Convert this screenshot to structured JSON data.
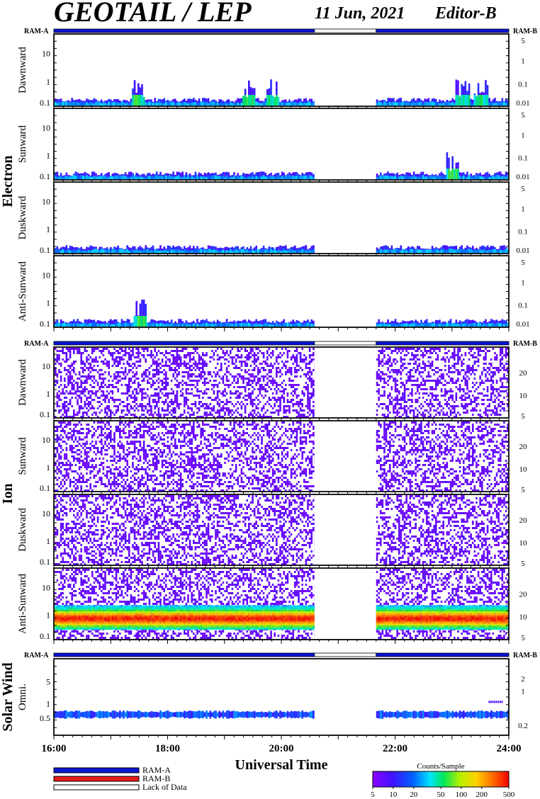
{
  "header": {
    "title": "GEOTAIL / LEP",
    "date": "11 Jun, 2021",
    "editor": "Editor-B"
  },
  "colors": {
    "ram_a": "#0a14d2",
    "ram_b": "#e81c1c",
    "lack_of_data": "#ffffff",
    "frame": "#000000"
  },
  "ram_labels": {
    "left": "RAM-A",
    "right": "RAM-B"
  },
  "groups": {
    "electron": "Electron",
    "ion": "Ion",
    "solar_wind": "Solar Wind"
  },
  "chart_data": {
    "type": "heatmap",
    "x_range": [
      "16:00",
      "24:00"
    ],
    "x_ticks": [
      "16:00",
      "18:00",
      "20:00",
      "22:00",
      "24:00"
    ],
    "xlabel": "Universal Time",
    "data_gap": [
      "20:35",
      "21:40"
    ],
    "status_bar": [
      {
        "mode": "RAM-A",
        "from": "16:00",
        "to": "20:35"
      },
      {
        "mode": "Lack of Data",
        "from": "20:35",
        "to": "21:40"
      },
      {
        "mode": "RAM-A",
        "from": "21:40",
        "to": "24:00"
      }
    ],
    "colorbar": {
      "title": "Counts/Sample",
      "scale": "log",
      "range": [
        5,
        500
      ],
      "ticks": [
        "5",
        "10",
        "20",
        "50",
        "100",
        "200",
        "500"
      ]
    },
    "legend": [
      {
        "label": "RAM-A",
        "color": "#0a14d2"
      },
      {
        "label": "RAM-B",
        "color": "#e81c1c"
      },
      {
        "label": "Lack of Data",
        "color": "#ffffff"
      }
    ],
    "panels": [
      {
        "group": "electron",
        "label": "Dawnward",
        "y_scale": "log",
        "y_ticks_left": [
          "10",
          "1",
          "0.1"
        ],
        "y_ticks_right": [
          "5",
          "1",
          "0.1",
          "0.01"
        ],
        "activity": "low",
        "enhancements": [
          "17:28",
          "19:25",
          "19:50",
          "23:10",
          "23:30"
        ]
      },
      {
        "group": "electron",
        "label": "Sunward",
        "y_scale": "log",
        "y_ticks_left": [
          "10",
          "1",
          "0.1"
        ],
        "y_ticks_right": [
          "5",
          "1",
          "0.1",
          "0.01"
        ],
        "activity": "low",
        "enhancements": [
          "23:00"
        ]
      },
      {
        "group": "electron",
        "label": "Duskward",
        "y_scale": "log",
        "y_ticks_left": [
          "10",
          "1",
          "0.1"
        ],
        "y_ticks_right": [
          "5",
          "1",
          "0.1",
          "0.01"
        ],
        "activity": "low",
        "enhancements": []
      },
      {
        "group": "electron",
        "label": "Anti-Sunward",
        "y_scale": "log",
        "y_ticks_left": [
          "10",
          "1",
          "0.1"
        ],
        "y_ticks_right": [
          "5",
          "1",
          "0.1",
          "0.01"
        ],
        "activity": "low",
        "enhancements": [
          "17:30"
        ]
      },
      {
        "group": "ion",
        "label": "Dawnward",
        "y_scale": "log",
        "y_ticks_left": [
          "10",
          "1",
          "0.1"
        ],
        "y_ticks_right": [
          "20",
          "10",
          "5"
        ],
        "activity": "sparse",
        "enhancements": []
      },
      {
        "group": "ion",
        "label": "Sunward",
        "y_scale": "log",
        "y_ticks_left": [
          "10",
          "1",
          "0.1"
        ],
        "y_ticks_right": [
          "20",
          "10",
          "5"
        ],
        "activity": "sparse",
        "enhancements": []
      },
      {
        "group": "ion",
        "label": "Duskward",
        "y_scale": "log",
        "y_ticks_left": [
          "10",
          "1",
          "0.1"
        ],
        "y_ticks_right": [
          "20",
          "10",
          "5"
        ],
        "activity": "sparse",
        "enhancements": []
      },
      {
        "group": "ion",
        "label": "Anti-Sunward",
        "y_scale": "log",
        "y_ticks_left": [
          "10",
          "1",
          "0.1"
        ],
        "y_ticks_right": [
          "20",
          "10",
          "5"
        ],
        "activity": "solar_wind_beam",
        "beam_energy_center": "0.7",
        "beam_peak_counts": 500,
        "enhancements": []
      },
      {
        "group": "solar_wind",
        "label": "Omni.",
        "y_scale": "log",
        "y_ticks_left": [
          "5",
          "1",
          "0.5"
        ],
        "y_ticks_right": [
          "2",
          "1",
          "0.2"
        ],
        "activity": "band",
        "enhancements": [
          "23:45"
        ]
      }
    ]
  }
}
